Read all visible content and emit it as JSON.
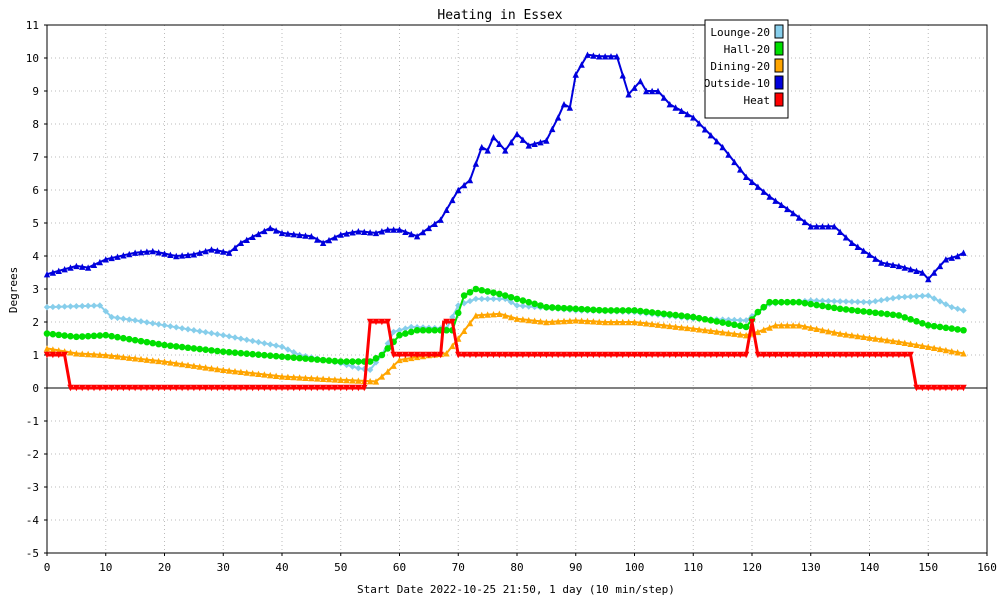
{
  "chart_data": {
    "type": "line",
    "title": "Heating in Essex",
    "xlabel": "Start Date 2022-10-25 21:50, 1 day (10 min/step)",
    "ylabel": "Degrees",
    "xlim": [
      0,
      160
    ],
    "ylim": [
      -5,
      11
    ],
    "x_ticks": [
      0,
      10,
      20,
      30,
      40,
      50,
      60,
      70,
      80,
      90,
      100,
      110,
      120,
      130,
      140,
      150,
      160
    ],
    "y_ticks": [
      -5,
      -4,
      -3,
      -2,
      -1,
      0,
      1,
      2,
      3,
      4,
      5,
      6,
      7,
      8,
      9,
      10,
      11
    ],
    "grid": true,
    "legend_position": "top-right",
    "series": [
      {
        "name": "Lounge-20",
        "color": "#87ceeb",
        "marker": "diamond",
        "keypoints": [
          [
            0,
            2.45
          ],
          [
            9,
            2.5
          ],
          [
            11,
            2.15
          ],
          [
            15,
            2.05
          ],
          [
            20,
            1.9
          ],
          [
            30,
            1.6
          ],
          [
            40,
            1.25
          ],
          [
            43,
            1.0
          ],
          [
            50,
            0.75
          ],
          [
            53,
            0.6
          ],
          [
            55,
            0.55
          ],
          [
            57,
            1.0
          ],
          [
            59,
            1.7
          ],
          [
            62,
            1.85
          ],
          [
            68,
            1.8
          ],
          [
            70,
            2.5
          ],
          [
            73,
            2.7
          ],
          [
            78,
            2.7
          ],
          [
            80,
            2.5
          ],
          [
            90,
            2.35
          ],
          [
            100,
            2.3
          ],
          [
            110,
            2.1
          ],
          [
            119,
            2.05
          ],
          [
            121,
            2.3
          ],
          [
            123,
            2.55
          ],
          [
            130,
            2.65
          ],
          [
            140,
            2.6
          ],
          [
            145,
            2.75
          ],
          [
            150,
            2.8
          ],
          [
            154,
            2.45
          ],
          [
            156,
            2.35
          ]
        ]
      },
      {
        "name": "Hall-20",
        "color": "#00e000",
        "marker": "circle",
        "keypoints": [
          [
            0,
            1.65
          ],
          [
            5,
            1.55
          ],
          [
            10,
            1.6
          ],
          [
            20,
            1.3
          ],
          [
            30,
            1.1
          ],
          [
            40,
            0.95
          ],
          [
            50,
            0.8
          ],
          [
            55,
            0.8
          ],
          [
            57,
            1.0
          ],
          [
            60,
            1.6
          ],
          [
            63,
            1.75
          ],
          [
            69,
            1.75
          ],
          [
            71,
            2.8
          ],
          [
            73,
            3.0
          ],
          [
            77,
            2.85
          ],
          [
            80,
            2.7
          ],
          [
            85,
            2.45
          ],
          [
            95,
            2.35
          ],
          [
            100,
            2.35
          ],
          [
            110,
            2.15
          ],
          [
            119,
            1.85
          ],
          [
            121,
            2.3
          ],
          [
            123,
            2.6
          ],
          [
            128,
            2.6
          ],
          [
            135,
            2.4
          ],
          [
            145,
            2.2
          ],
          [
            150,
            1.9
          ],
          [
            156,
            1.75
          ]
        ]
      },
      {
        "name": "Dining-20",
        "color": "#ffa500",
        "marker": "triangle",
        "keypoints": [
          [
            0,
            1.2
          ],
          [
            5,
            1.05
          ],
          [
            10,
            1.0
          ],
          [
            20,
            0.8
          ],
          [
            30,
            0.55
          ],
          [
            40,
            0.35
          ],
          [
            50,
            0.25
          ],
          [
            56,
            0.2
          ],
          [
            58,
            0.5
          ],
          [
            60,
            0.85
          ],
          [
            65,
            1.0
          ],
          [
            68,
            1.05
          ],
          [
            70,
            1.5
          ],
          [
            73,
            2.2
          ],
          [
            77,
            2.25
          ],
          [
            80,
            2.1
          ],
          [
            85,
            2.0
          ],
          [
            90,
            2.05
          ],
          [
            95,
            2.0
          ],
          [
            100,
            2.0
          ],
          [
            110,
            1.8
          ],
          [
            119,
            1.6
          ],
          [
            121,
            1.7
          ],
          [
            124,
            1.9
          ],
          [
            128,
            1.9
          ],
          [
            135,
            1.65
          ],
          [
            145,
            1.4
          ],
          [
            150,
            1.25
          ],
          [
            156,
            1.05
          ]
        ]
      },
      {
        "name": "Outside-10",
        "color": "#0000dd",
        "marker": "triangle",
        "keypoints": [
          [
            0,
            3.45
          ],
          [
            5,
            3.7
          ],
          [
            7,
            3.65
          ],
          [
            10,
            3.9
          ],
          [
            15,
            4.1
          ],
          [
            18,
            4.15
          ],
          [
            22,
            4.0
          ],
          [
            25,
            4.05
          ],
          [
            28,
            4.2
          ],
          [
            31,
            4.1
          ],
          [
            33,
            4.4
          ],
          [
            38,
            4.85
          ],
          [
            40,
            4.7
          ],
          [
            45,
            4.6
          ],
          [
            47,
            4.4
          ],
          [
            50,
            4.65
          ],
          [
            53,
            4.75
          ],
          [
            56,
            4.7
          ],
          [
            58,
            4.8
          ],
          [
            60,
            4.8
          ],
          [
            63,
            4.6
          ],
          [
            65,
            4.85
          ],
          [
            67,
            5.1
          ],
          [
            70,
            6.0
          ],
          [
            72,
            6.3
          ],
          [
            74,
            7.3
          ],
          [
            75,
            7.2
          ],
          [
            76,
            7.6
          ],
          [
            78,
            7.2
          ],
          [
            80,
            7.7
          ],
          [
            82,
            7.35
          ],
          [
            85,
            7.5
          ],
          [
            87,
            8.2
          ],
          [
            88,
            8.6
          ],
          [
            89,
            8.5
          ],
          [
            90,
            9.5
          ],
          [
            92,
            10.1
          ],
          [
            94,
            10.05
          ],
          [
            97,
            10.05
          ],
          [
            99,
            8.9
          ],
          [
            101,
            9.3
          ],
          [
            102,
            9.0
          ],
          [
            104,
            9.0
          ],
          [
            106,
            8.6
          ],
          [
            110,
            8.2
          ],
          [
            115,
            7.3
          ],
          [
            119,
            6.4
          ],
          [
            123,
            5.8
          ],
          [
            127,
            5.3
          ],
          [
            130,
            4.9
          ],
          [
            134,
            4.9
          ],
          [
            137,
            4.4
          ],
          [
            142,
            3.8
          ],
          [
            145,
            3.7
          ],
          [
            149,
            3.5
          ],
          [
            150,
            3.3
          ],
          [
            153,
            3.9
          ],
          [
            155,
            4.0
          ],
          [
            156,
            4.1
          ]
        ]
      },
      {
        "name": "Heat",
        "color": "#ff0000",
        "marker": "triangle-down",
        "keypoints": [
          [
            0,
            1.0
          ],
          [
            3,
            1.0
          ],
          [
            4,
            0.0
          ],
          [
            54,
            0.0
          ],
          [
            55,
            2.0
          ],
          [
            58,
            2.0
          ],
          [
            59,
            1.0
          ],
          [
            67,
            1.0
          ],
          [
            67.5,
            2.0
          ],
          [
            69,
            2.0
          ],
          [
            70,
            1.0
          ],
          [
            119,
            1.0
          ],
          [
            120,
            2.0
          ],
          [
            121,
            1.0
          ],
          [
            147,
            1.0
          ],
          [
            148,
            0.0
          ],
          [
            156,
            0.0
          ]
        ]
      }
    ]
  }
}
